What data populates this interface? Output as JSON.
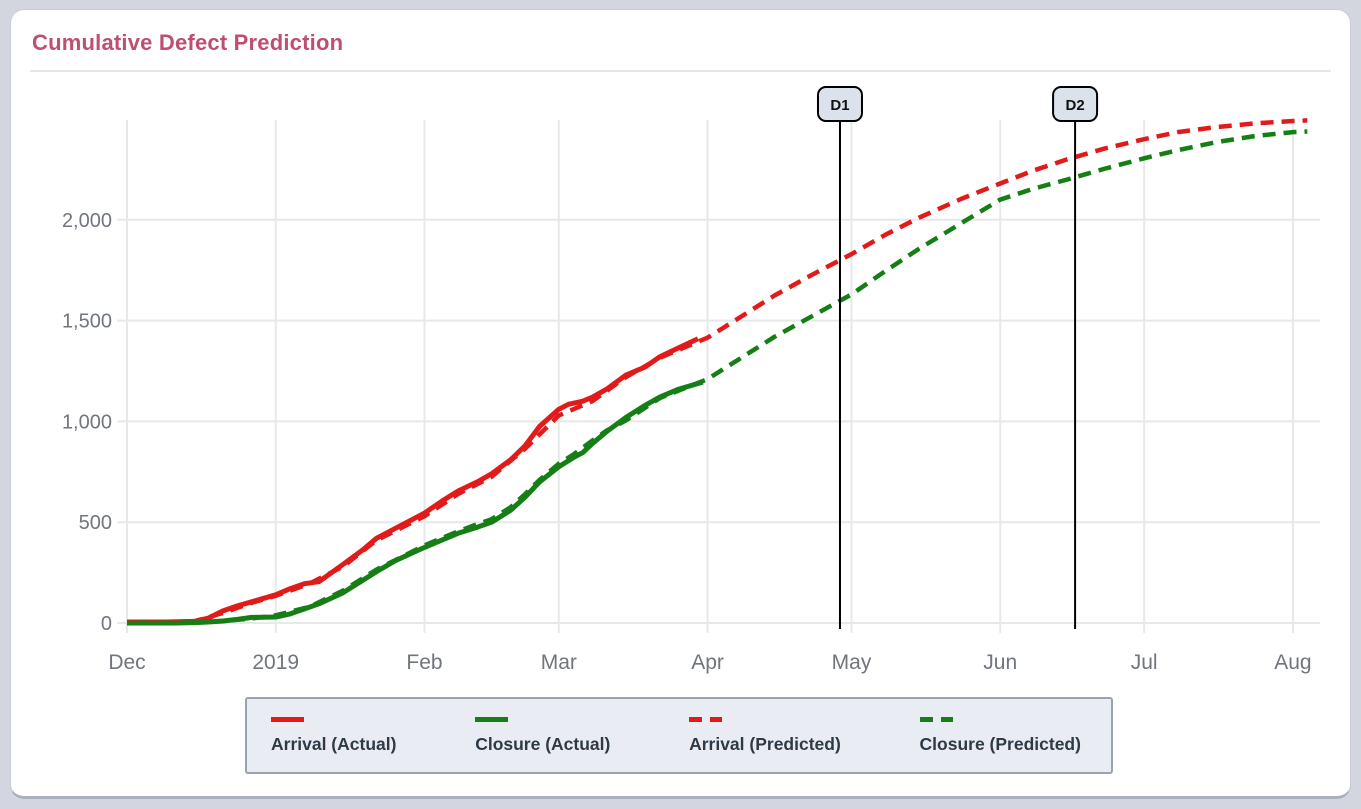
{
  "header": {
    "title": "Cumulative Defect Prediction"
  },
  "chart_data": {
    "type": "line",
    "title": "Cumulative Defect Prediction",
    "x_axis": {
      "tick_labels": [
        "Dec",
        "2019",
        "Feb",
        "Mar",
        "Apr",
        "May",
        "Jun",
        "Jul",
        "Aug"
      ],
      "tick_days": [
        0,
        31,
        62,
        90,
        121,
        151,
        182,
        212,
        243
      ],
      "grid": true
    },
    "y_axis": {
      "tick_labels": [
        "0",
        "500",
        "1,000",
        "1,500",
        "2,000"
      ],
      "tick_values": [
        0,
        500,
        1000,
        1500,
        2000
      ],
      "range": [
        0,
        2500
      ],
      "grid": true
    },
    "colors": {
      "arrival": "#e11a1a",
      "closure": "#157f15",
      "annotation_line": "#000000",
      "annotation_fill": "#dbe2ec",
      "axis_text": "#70757e",
      "gridline": "#e7e8ea"
    },
    "legend_position": "bottom",
    "series": [
      {
        "name": "Arrival (Actual)",
        "color": "#e11a1a",
        "style": "solid",
        "points": [
          [
            0,
            5
          ],
          [
            8,
            5
          ],
          [
            14,
            8
          ],
          [
            17,
            25
          ],
          [
            20,
            60
          ],
          [
            23,
            85
          ],
          [
            26,
            105
          ],
          [
            31,
            140
          ],
          [
            34,
            170
          ],
          [
            37,
            195
          ],
          [
            40,
            205
          ],
          [
            45,
            290
          ],
          [
            49,
            360
          ],
          [
            52,
            420
          ],
          [
            56,
            470
          ],
          [
            62,
            545
          ],
          [
            66,
            610
          ],
          [
            69,
            655
          ],
          [
            73,
            700
          ],
          [
            76,
            740
          ],
          [
            80,
            810
          ],
          [
            83,
            880
          ],
          [
            86,
            975
          ],
          [
            90,
            1060
          ],
          [
            92,
            1085
          ],
          [
            95,
            1100
          ],
          [
            97,
            1120
          ],
          [
            100,
            1160
          ],
          [
            104,
            1230
          ],
          [
            108,
            1270
          ],
          [
            111,
            1320
          ],
          [
            115,
            1365
          ],
          [
            119,
            1410
          ]
        ]
      },
      {
        "name": "Closure (Actual)",
        "color": "#157f15",
        "style": "solid",
        "points": [
          [
            0,
            0
          ],
          [
            10,
            0
          ],
          [
            14,
            2
          ],
          [
            17,
            5
          ],
          [
            20,
            10
          ],
          [
            23,
            18
          ],
          [
            26,
            28
          ],
          [
            31,
            30
          ],
          [
            34,
            45
          ],
          [
            37,
            70
          ],
          [
            40,
            95
          ],
          [
            45,
            150
          ],
          [
            49,
            210
          ],
          [
            52,
            255
          ],
          [
            56,
            310
          ],
          [
            62,
            375
          ],
          [
            66,
            415
          ],
          [
            69,
            445
          ],
          [
            73,
            475
          ],
          [
            76,
            500
          ],
          [
            80,
            560
          ],
          [
            83,
            625
          ],
          [
            86,
            700
          ],
          [
            90,
            775
          ],
          [
            93,
            820
          ],
          [
            95,
            845
          ],
          [
            97,
            890
          ],
          [
            100,
            950
          ],
          [
            104,
            1020
          ],
          [
            108,
            1080
          ],
          [
            111,
            1120
          ],
          [
            115,
            1160
          ],
          [
            120,
            1195
          ]
        ]
      },
      {
        "name": "Arrival (Predicted)",
        "color": "#e11a1a",
        "style": "dashed",
        "points": [
          [
            0,
            5
          ],
          [
            10,
            5
          ],
          [
            14,
            8
          ],
          [
            20,
            50
          ],
          [
            26,
            100
          ],
          [
            31,
            135
          ],
          [
            38,
            195
          ],
          [
            45,
            280
          ],
          [
            52,
            410
          ],
          [
            62,
            530
          ],
          [
            69,
            640
          ],
          [
            76,
            725
          ],
          [
            83,
            865
          ],
          [
            90,
            1030
          ],
          [
            97,
            1100
          ],
          [
            104,
            1220
          ],
          [
            111,
            1315
          ],
          [
            121,
            1415
          ],
          [
            128,
            1520
          ],
          [
            135,
            1625
          ],
          [
            143,
            1730
          ],
          [
            151,
            1830
          ],
          [
            158,
            1925
          ],
          [
            165,
            2010
          ],
          [
            174,
            2105
          ],
          [
            182,
            2180
          ],
          [
            189,
            2245
          ],
          [
            196,
            2300
          ],
          [
            204,
            2355
          ],
          [
            212,
            2400
          ],
          [
            219,
            2435
          ],
          [
            227,
            2460
          ],
          [
            235,
            2478
          ],
          [
            243,
            2490
          ],
          [
            246,
            2493
          ]
        ]
      },
      {
        "name": "Closure (Predicted)",
        "color": "#157f15",
        "style": "dashed",
        "points": [
          [
            0,
            0
          ],
          [
            10,
            0
          ],
          [
            14,
            3
          ],
          [
            20,
            10
          ],
          [
            26,
            22
          ],
          [
            31,
            38
          ],
          [
            38,
            80
          ],
          [
            45,
            160
          ],
          [
            52,
            265
          ],
          [
            62,
            385
          ],
          [
            66,
            425
          ],
          [
            69,
            455
          ],
          [
            73,
            490
          ],
          [
            76,
            515
          ],
          [
            80,
            575
          ],
          [
            83,
            640
          ],
          [
            86,
            710
          ],
          [
            90,
            790
          ],
          [
            93,
            835
          ],
          [
            97,
            905
          ],
          [
            100,
            955
          ],
          [
            104,
            1005
          ],
          [
            111,
            1115
          ],
          [
            121,
            1210
          ],
          [
            128,
            1315
          ],
          [
            135,
            1420
          ],
          [
            143,
            1525
          ],
          [
            151,
            1630
          ],
          [
            158,
            1745
          ],
          [
            165,
            1855
          ],
          [
            174,
            1985
          ],
          [
            182,
            2100
          ],
          [
            189,
            2155
          ],
          [
            196,
            2200
          ],
          [
            204,
            2255
          ],
          [
            212,
            2305
          ],
          [
            219,
            2345
          ],
          [
            227,
            2385
          ],
          [
            235,
            2415
          ],
          [
            243,
            2435
          ],
          [
            246,
            2438
          ]
        ]
      }
    ],
    "annotations": [
      {
        "label": "D1",
        "day": 148.6
      },
      {
        "label": "D2",
        "day": 197.6
      }
    ]
  }
}
